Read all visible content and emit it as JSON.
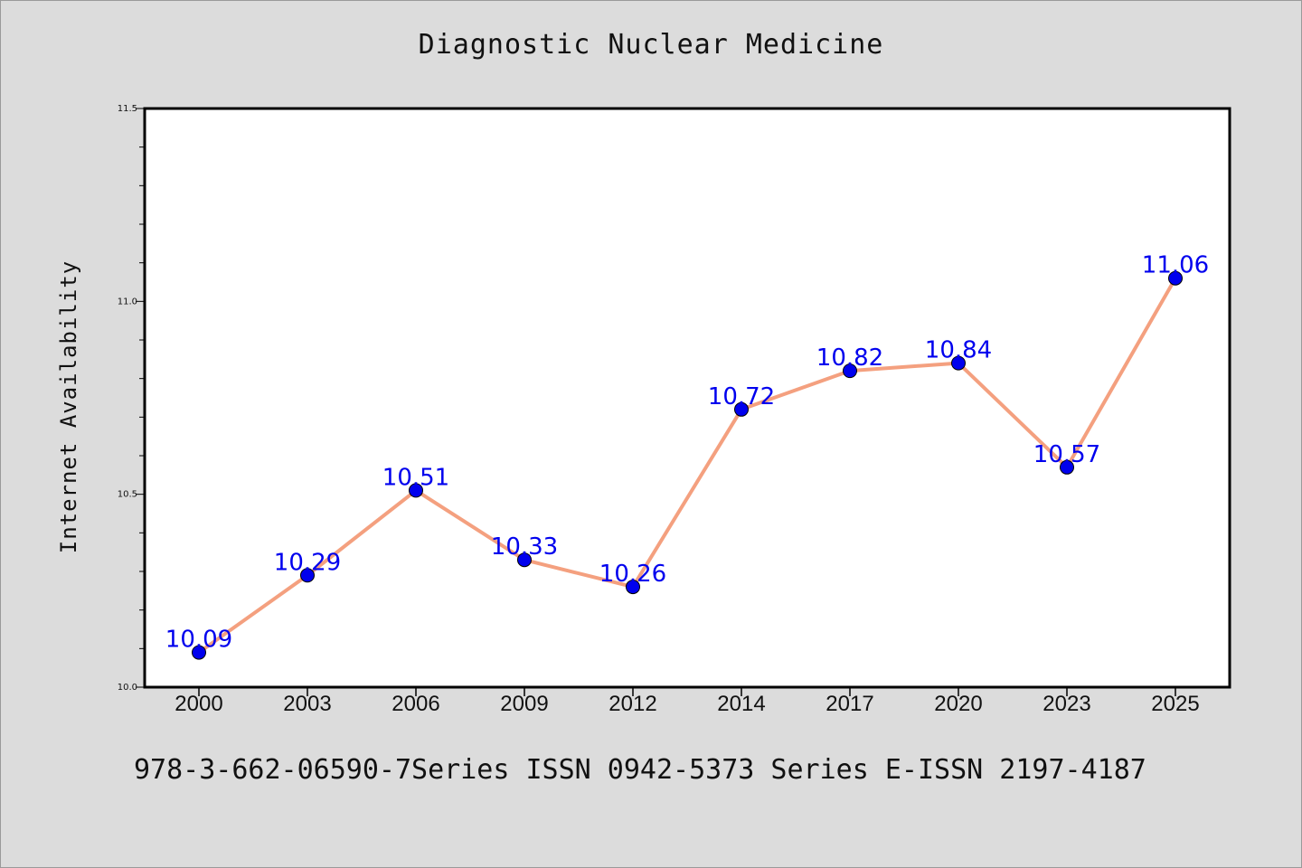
{
  "chart_data": {
    "type": "line",
    "title": "Diagnostic Nuclear Medicine",
    "xlabel": "",
    "ylabel": "Internet Availability",
    "categories": [
      "2000",
      "2003",
      "2006",
      "2009",
      "2012",
      "2014",
      "2017",
      "2020",
      "2023",
      "2025"
    ],
    "values": [
      10.09,
      10.29,
      10.51,
      10.33,
      10.26,
      10.72,
      10.82,
      10.84,
      10.57,
      11.06
    ],
    "data_labels": [
      "10.09",
      "10.29",
      "10.51",
      "10.33",
      "10.26",
      "10.72",
      "10.82",
      "10.84",
      "10.57",
      "11.06"
    ],
    "ylim": [
      10.0,
      11.5
    ],
    "y_ticks": [
      "10.0",
      "10.5",
      "11.0",
      "11.5"
    ],
    "grid": false,
    "legend": "none",
    "line_color": "#f4a07f",
    "marker_color": "#0000ee",
    "label_color": "#0000ee"
  },
  "footer": "978-3-662-06590-7Series ISSN 0942-5373 Series E-ISSN 2197-4187"
}
